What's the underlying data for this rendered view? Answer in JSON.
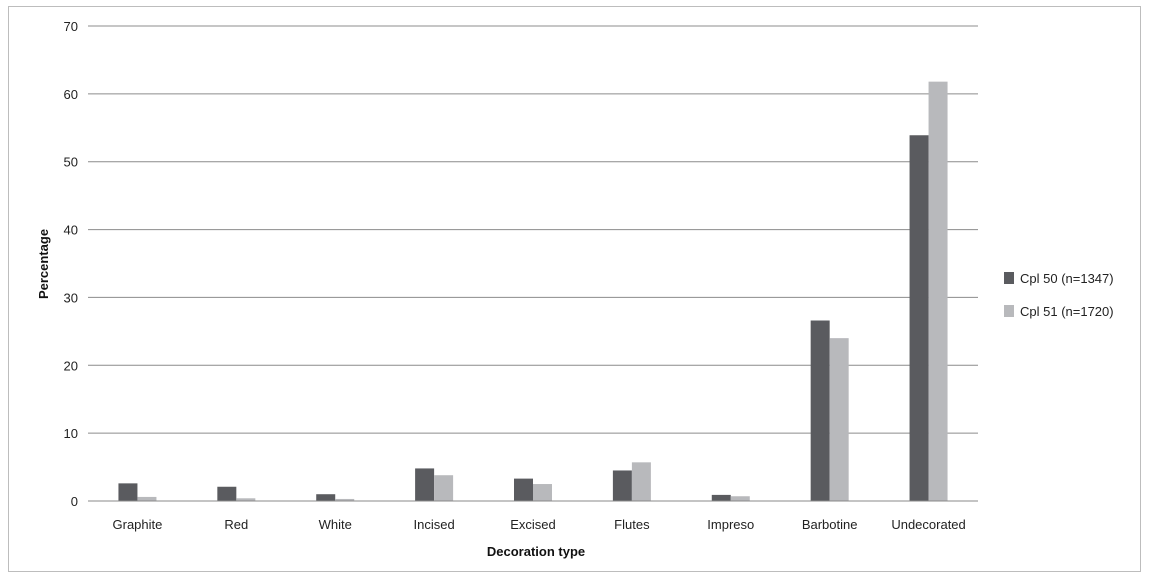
{
  "chart_data": {
    "type": "bar",
    "title": "",
    "xlabel": "Decoration type",
    "ylabel": "Percentage",
    "ylim": [
      0,
      70
    ],
    "yticks": [
      0,
      10,
      20,
      30,
      40,
      50,
      60,
      70
    ],
    "grid": true,
    "legend_position": "right",
    "categories": [
      "Graphite",
      "Red",
      "White",
      "Incised",
      "Excised",
      "Flutes",
      "Impreso",
      "Barbotine",
      "Undecorated"
    ],
    "series": [
      {
        "name": "Cpl 50 (n=1347)",
        "color": "#5a5b5f",
        "values": [
          2.6,
          2.1,
          1.0,
          4.8,
          3.3,
          4.5,
          0.9,
          26.6,
          53.9
        ]
      },
      {
        "name": "Cpl 51 (n=1720)",
        "color": "#b8b9bc",
        "values": [
          0.6,
          0.4,
          0.3,
          3.8,
          2.5,
          5.7,
          0.7,
          24.0,
          61.8
        ]
      }
    ]
  }
}
